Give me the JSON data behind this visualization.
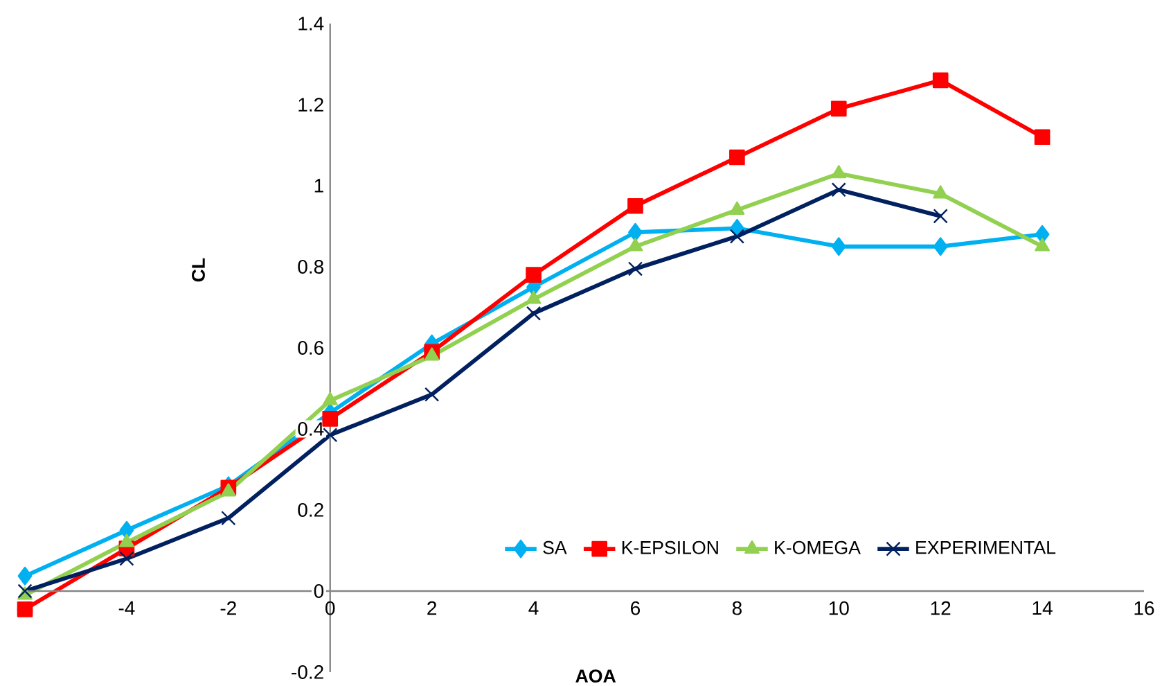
{
  "chart_data": {
    "type": "line",
    "xlabel": "AOA",
    "ylabel": "CL",
    "x": [
      -6,
      -4,
      -2,
      0,
      2,
      4,
      6,
      8,
      10,
      12,
      14
    ],
    "series": [
      {
        "name": "SA",
        "color": "#00b0f0",
        "marker": "diamond",
        "values": [
          0.037,
          0.15,
          0.26,
          0.44,
          0.61,
          0.75,
          0.885,
          0.895,
          0.85,
          0.85,
          0.88
        ]
      },
      {
        "name": "K-EPSILON",
        "color": "#ff0000",
        "marker": "square",
        "values": [
          -0.045,
          0.105,
          0.255,
          0.425,
          0.59,
          0.78,
          0.95,
          1.07,
          1.19,
          1.26,
          1.12
        ]
      },
      {
        "name": "K-OMEGA",
        "color": "#92d050",
        "marker": "triangle",
        "values": [
          -0.01,
          0.12,
          0.245,
          0.47,
          0.58,
          0.72,
          0.85,
          0.94,
          1.03,
          0.98,
          0.85
        ]
      },
      {
        "name": "EXPERIMENTAL",
        "color": "#002060",
        "marker": "cross",
        "values": [
          0.0,
          0.08,
          0.18,
          0.385,
          0.485,
          0.685,
          0.795,
          0.875,
          0.99,
          0.925,
          null
        ]
      }
    ],
    "xlim": [
      -6,
      16
    ],
    "ylim": [
      -0.2,
      1.4
    ],
    "xticks": [
      -6,
      -4,
      -2,
      0,
      2,
      4,
      6,
      8,
      10,
      12,
      14,
      16
    ],
    "yticks": [
      -0.2,
      0,
      0.2,
      0.4,
      0.6,
      0.8,
      1,
      1.2,
      1.4
    ],
    "grid": false,
    "legend": "bottom right"
  }
}
